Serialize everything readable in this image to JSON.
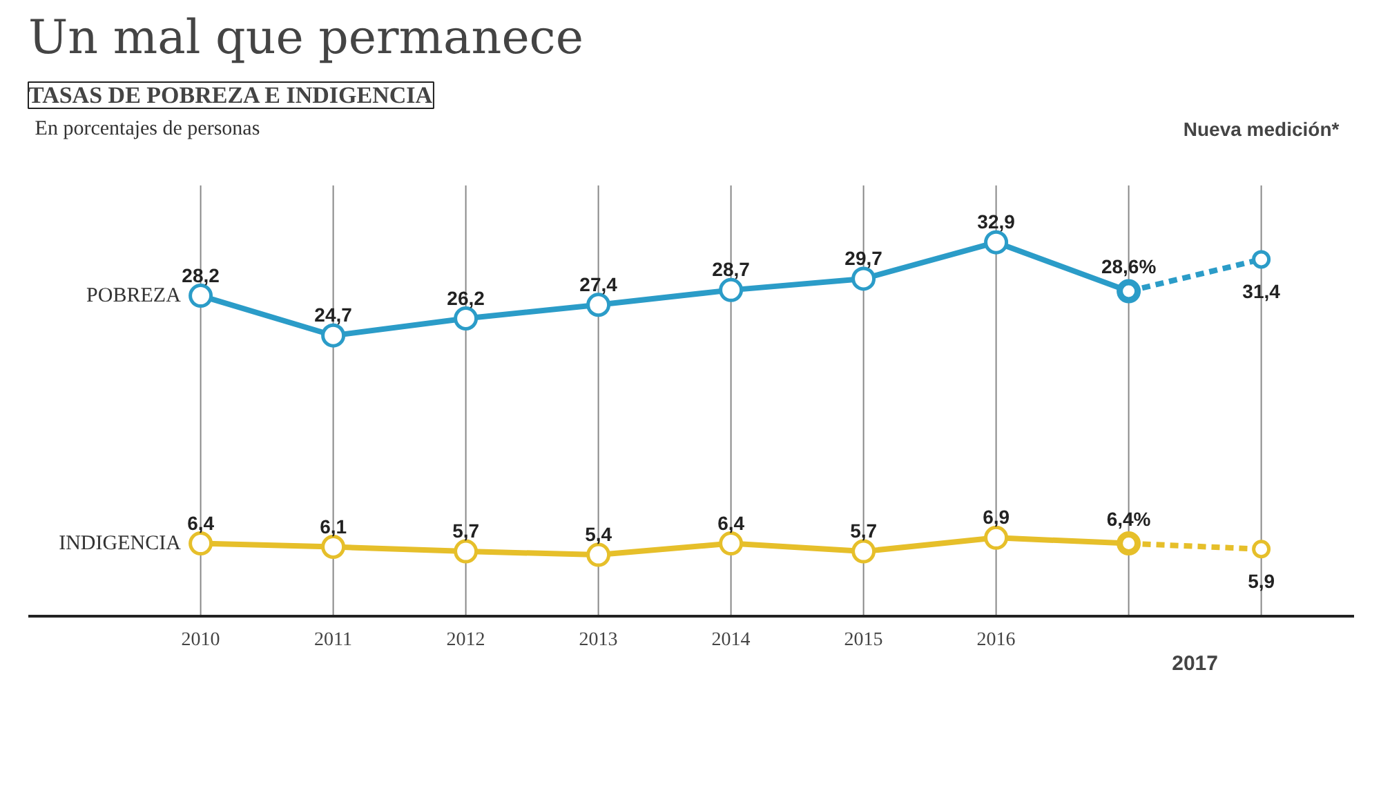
{
  "chart_data": {
    "type": "line",
    "title": "Un mal que permanece",
    "subtitle": "TASAS DE POBREZA E INDIGENCIA",
    "annotations": [
      "En porcentajes de personas",
      "Nueva medición*",
      "2017"
    ],
    "categories": [
      "2010",
      "2011",
      "2012",
      "2013",
      "2014",
      "2015",
      "2016",
      null,
      null
    ],
    "tick_labels": "x",
    "grid": "x",
    "marker": "circle",
    "series": [
      {
        "name": "POBREZA",
        "color": "#2b9cc8",
        "line_style": "solid",
        "values": [
          28.2,
          24.7,
          26.2,
          27.4,
          28.7,
          29.7,
          32.9,
          28.6,
          null
        ],
        "value_labels": [
          "28,2",
          "24,7",
          "26,2",
          "27,4",
          "28,7",
          "29,7",
          "32,9",
          "28,6%",
          null
        ]
      },
      {
        "color": "#2b9cc8",
        "line_style": "dashed",
        "values": [
          null,
          null,
          null,
          null,
          null,
          null,
          null,
          28.6,
          31.4
        ],
        "value_labels": [
          null,
          null,
          null,
          null,
          null,
          null,
          null,
          null,
          "31,4"
        ]
      },
      {
        "name": "INDIGENCIA",
        "color": "#e6bf2a",
        "line_style": "solid",
        "values": [
          6.4,
          6.1,
          5.7,
          5.4,
          6.4,
          5.7,
          6.9,
          6.4,
          null
        ],
        "value_labels": [
          "6,4",
          "6,1",
          "5,7",
          "5,4",
          "6,4",
          "5,7",
          "6,9",
          "6,4%",
          null
        ]
      },
      {
        "color": "#e6bf2a",
        "line_style": "dashed",
        "values": [
          null,
          null,
          null,
          null,
          null,
          null,
          null,
          6.4,
          5.9
        ],
        "value_labels": [
          null,
          null,
          null,
          null,
          null,
          null,
          null,
          null,
          "5,9"
        ]
      }
    ]
  }
}
